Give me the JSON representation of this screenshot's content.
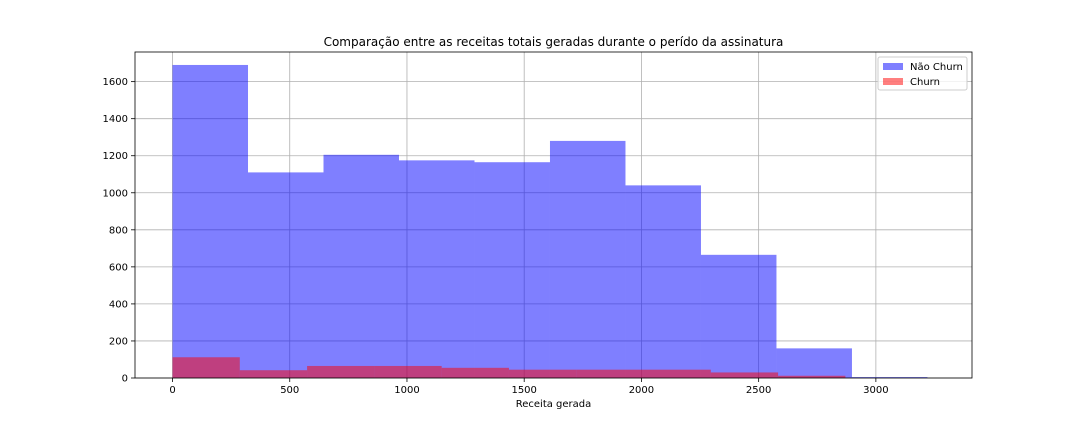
{
  "chart_data": {
    "type": "histogram",
    "title": "Comparação entre as receitas totais geradas durante o perído da assinatura",
    "xlabel": "Receita gerada",
    "ylabel": "",
    "xlim": [
      -160,
      3410
    ],
    "ylim": [
      0,
      1760
    ],
    "xticks": [
      0,
      500,
      1000,
      1500,
      2000,
      2500,
      3000
    ],
    "yticks": [
      0,
      200,
      400,
      600,
      800,
      1000,
      1200,
      1400,
      1600
    ],
    "grid": true,
    "legend_position": "top-right",
    "series": [
      {
        "name": "Não Churn",
        "color": "#0000ff",
        "alpha": 0.5,
        "bin_edges": [
          0,
          322,
          644,
          966,
          1288,
          1610,
          1932,
          2254,
          2576,
          2898,
          3220
        ],
        "values": [
          1690,
          1110,
          1205,
          1175,
          1165,
          1280,
          1040,
          665,
          160,
          5
        ]
      },
      {
        "name": "Churn",
        "color": "#ff0000",
        "alpha": 0.5,
        "bin_edges": [
          0,
          287,
          574,
          861,
          1148,
          1435,
          1722,
          2009,
          2296,
          2583,
          2870
        ],
        "values": [
          112,
          42,
          65,
          65,
          55,
          45,
          45,
          45,
          30,
          12
        ]
      }
    ]
  }
}
